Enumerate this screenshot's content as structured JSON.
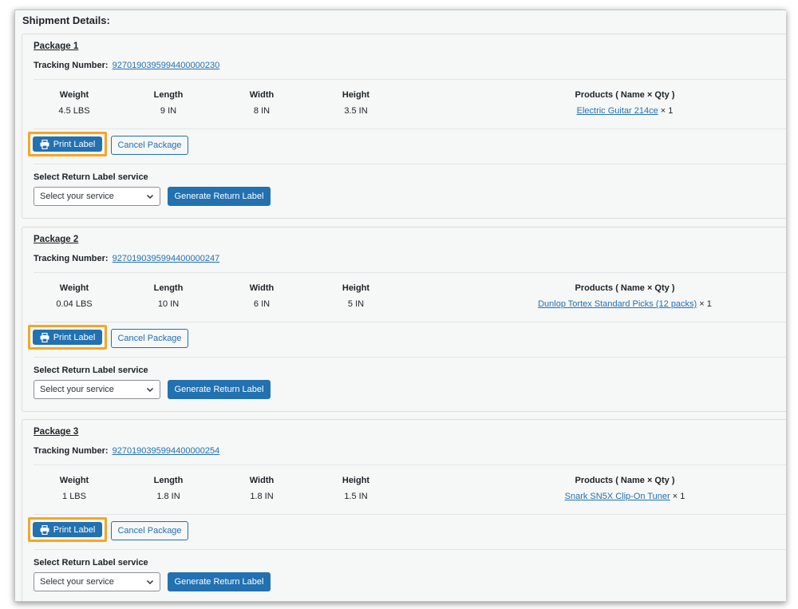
{
  "section_title": "Shipment Details:",
  "labels": {
    "tracking": "Tracking Number:",
    "weight": "Weight",
    "length": "Length",
    "width": "Width",
    "height": "Height",
    "products": "Products ( Name × Qty )",
    "print": "Print Label",
    "cancel": "Cancel Package",
    "return_service": "Select Return Label service",
    "select_placeholder": "Select your service",
    "generate": "Generate Return Label"
  },
  "icons": {
    "print": "printer-icon",
    "select": "chevron-down-icon"
  },
  "colors": {
    "primary": "#2271b1",
    "highlight": "#f5a623",
    "background": "#f6f7f7"
  },
  "packages": [
    {
      "title": "Package 1",
      "tracking": "9270190395994400000230",
      "weight": "4.5 LBS",
      "length": "9 IN",
      "width": "8 IN",
      "height": "3.5 IN",
      "product_name": "Electric Guitar 214ce",
      "product_qty": "× 1"
    },
    {
      "title": "Package 2",
      "tracking": "9270190395994400000247",
      "weight": "0.04 LBS",
      "length": "10 IN",
      "width": "6 IN",
      "height": "5 IN",
      "product_name": "Dunlop Tortex Standard Picks (12 packs)",
      "product_qty": "× 1"
    },
    {
      "title": "Package 3",
      "tracking": "9270190395994400000254",
      "weight": "1 LBS",
      "length": "1.8 IN",
      "width": "1.8 IN",
      "height": "1.5 IN",
      "product_name": "Snark SN5X Clip-On Tuner",
      "product_qty": "× 1"
    }
  ]
}
